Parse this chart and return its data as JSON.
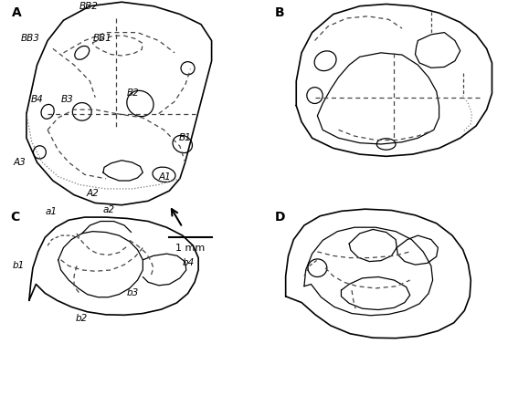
{
  "panel_labels": [
    "A",
    "B",
    "C",
    "D"
  ],
  "scale_bar_text": "1 mm",
  "background_color": "#ffffff",
  "line_color": "#000000",
  "label_fontsize": 7.5,
  "panel_fontsize": 10
}
